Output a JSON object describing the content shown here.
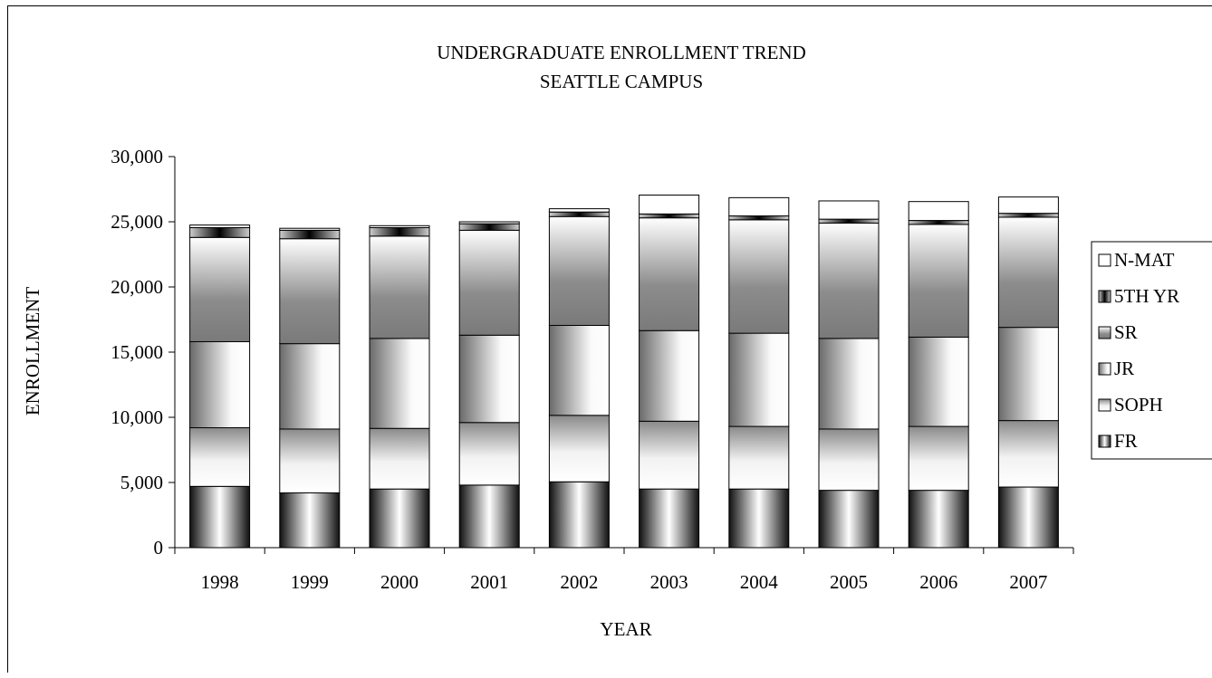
{
  "chart_data": {
    "type": "bar",
    "stacked": true,
    "title": "UNDERGRADUATE ENROLLMENT TREND",
    "subtitle": "SEATTLE CAMPUS",
    "xlabel": "YEAR",
    "ylabel": "ENROLLMENT",
    "ylim": [
      0,
      30000
    ],
    "yticks": [
      0,
      5000,
      10000,
      15000,
      20000,
      25000,
      30000
    ],
    "ytick_labels": [
      "0",
      "5,000",
      "10,000",
      "15,000",
      "20,000",
      "25,000",
      "30,000"
    ],
    "grid": false,
    "legend_position": "right",
    "categories": [
      "1998",
      "1999",
      "2000",
      "2001",
      "2002",
      "2003",
      "2004",
      "2005",
      "2006",
      "2007"
    ],
    "series": [
      {
        "name": "FR",
        "values": [
          4700,
          4200,
          4500,
          4800,
          5050,
          4500,
          4500,
          4400,
          4400,
          4650
        ]
      },
      {
        "name": "SOPH",
        "values": [
          4500,
          4900,
          4650,
          4800,
          5100,
          5200,
          4800,
          4700,
          4900,
          5100
        ]
      },
      {
        "name": "JR",
        "values": [
          6600,
          6550,
          6900,
          6700,
          6900,
          6950,
          7150,
          6950,
          6850,
          7150
        ]
      },
      {
        "name": "SR",
        "values": [
          8000,
          8050,
          7850,
          8050,
          8350,
          8650,
          8700,
          8850,
          8650,
          8450
        ]
      },
      {
        "name": "5TH YR",
        "values": [
          750,
          650,
          650,
          500,
          350,
          300,
          300,
          300,
          300,
          300
        ]
      },
      {
        "name": "N-MAT",
        "values": [
          200,
          150,
          150,
          150,
          250,
          1450,
          1400,
          1400,
          1450,
          1250
        ]
      }
    ]
  }
}
